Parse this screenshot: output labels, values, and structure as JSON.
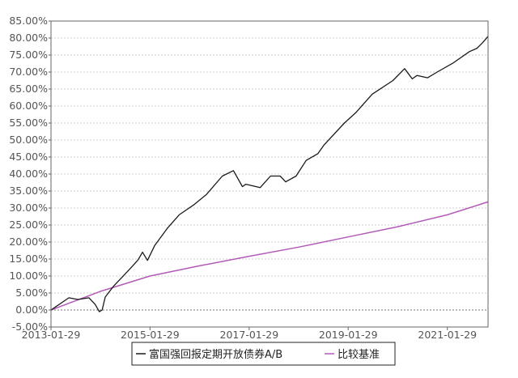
{
  "chart_data": {
    "type": "line",
    "title": "",
    "xlabel": "",
    "ylabel": "",
    "xlim": [
      "2013-01-29",
      "2021-11-25"
    ],
    "ylim": [
      -5,
      85
    ],
    "y_ticks": [
      "-5.00%",
      "0.00%",
      "5.00%",
      "10.00%",
      "15.00%",
      "20.00%",
      "25.00%",
      "30.00%",
      "35.00%",
      "40.00%",
      "45.00%",
      "50.00%",
      "55.00%",
      "60.00%",
      "65.00%",
      "70.00%",
      "75.00%",
      "80.00%",
      "85.00%"
    ],
    "x_ticks": [
      "2013-01-29",
      "2015-01-29",
      "2017-01-29",
      "2019-01-29",
      "2021-01-29"
    ],
    "grid": true,
    "legend_placement": "bottom",
    "series": [
      {
        "name": "富国强回报定期开放债券A/B",
        "color": "#1a1a1a",
        "points": [
          [
            "2013-01-29",
            0
          ],
          [
            "2013-06-10",
            3.6
          ],
          [
            "2013-08-15",
            3.1
          ],
          [
            "2013-11-05",
            3.6
          ],
          [
            "2013-12-20",
            1.7
          ],
          [
            "2014-01-20",
            -0.5
          ],
          [
            "2014-02-10",
            0.0
          ],
          [
            "2014-03-05",
            3.8
          ],
          [
            "2014-05-05",
            7.0
          ],
          [
            "2014-09-01",
            12.0
          ],
          [
            "2014-11-01",
            14.7
          ],
          [
            "2014-12-05",
            17.0
          ],
          [
            "2015-01-10",
            14.6
          ],
          [
            "2015-03-05",
            19.0
          ],
          [
            "2015-06-05",
            24.0
          ],
          [
            "2015-09-01",
            28.0
          ],
          [
            "2015-12-20",
            31.0
          ],
          [
            "2016-03-20",
            34.0
          ],
          [
            "2016-07-15",
            39.4
          ],
          [
            "2016-10-05",
            41.0
          ],
          [
            "2016-12-10",
            36.3
          ],
          [
            "2017-01-05",
            37.0
          ],
          [
            "2017-04-20",
            36.0
          ],
          [
            "2017-07-05",
            39.4
          ],
          [
            "2017-09-15",
            39.4
          ],
          [
            "2017-10-25",
            37.7
          ],
          [
            "2018-01-10",
            39.4
          ],
          [
            "2018-03-25",
            44.0
          ],
          [
            "2018-06-20",
            46.0
          ],
          [
            "2018-08-05",
            48.6
          ],
          [
            "2019-01-01",
            55.0
          ],
          [
            "2019-03-25",
            58.0
          ],
          [
            "2019-07-25",
            63.5
          ],
          [
            "2019-12-25",
            67.5
          ],
          [
            "2020-03-20",
            71.0
          ],
          [
            "2020-05-15",
            68.0
          ],
          [
            "2020-06-20",
            69.0
          ],
          [
            "2020-09-05",
            68.3
          ],
          [
            "2020-11-15",
            70.0
          ],
          [
            "2021-03-10",
            72.6
          ],
          [
            "2021-07-10",
            76.0
          ],
          [
            "2021-09-05",
            77.0
          ],
          [
            "2021-10-15",
            78.6
          ],
          [
            "2021-11-25",
            80.5
          ]
        ]
      },
      {
        "name": "比较基准",
        "color": "#b35ab8",
        "points": [
          [
            "2013-01-29",
            0
          ],
          [
            "2014-01-29",
            5.5
          ],
          [
            "2015-01-29",
            10.0
          ],
          [
            "2016-01-29",
            13.0
          ],
          [
            "2017-01-29",
            15.8
          ],
          [
            "2018-01-29",
            18.5
          ],
          [
            "2019-01-29",
            21.5
          ],
          [
            "2020-01-29",
            24.5
          ],
          [
            "2021-01-29",
            28.0
          ],
          [
            "2021-11-25",
            31.8
          ]
        ]
      }
    ]
  }
}
